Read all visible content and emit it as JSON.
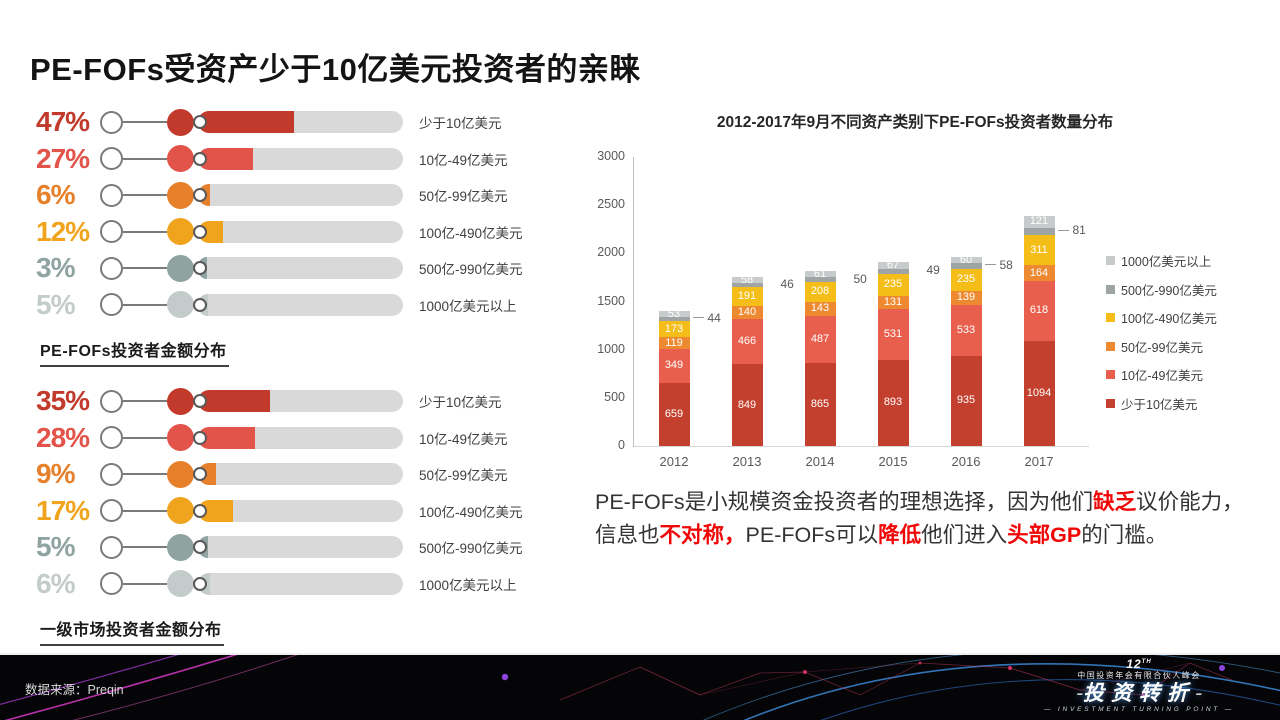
{
  "title": "PE-FOFs受资产少于10亿美元投资者的亲睐",
  "infographics": [
    {
      "caption": "PE-FOFs投资者金额分布",
      "rows": [
        {
          "pct_text": "47%",
          "value": 47,
          "label": "少于10亿美元",
          "color": "#C13A2B"
        },
        {
          "pct_text": "27%",
          "value": 27,
          "label": "10亿-49亿美元",
          "color": "#E2534A"
        },
        {
          "pct_text": "6%",
          "value": 6,
          "label": "50亿-99亿美元",
          "color": "#E6802A"
        },
        {
          "pct_text": "12%",
          "value": 12,
          "label": "100亿-490亿美元",
          "color": "#F0A41E"
        },
        {
          "pct_text": "3%",
          "value": 3,
          "label": "500亿-990亿美元",
          "color": "#8FA3A1"
        },
        {
          "pct_text": "5%",
          "value": 5,
          "label": "1000亿美元以上",
          "color": "#C3CBCB"
        }
      ]
    },
    {
      "caption": "一级市场投资者金额分布",
      "rows": [
        {
          "pct_text": "35%",
          "value": 35,
          "label": "少于10亿美元",
          "color": "#C13A2B"
        },
        {
          "pct_text": "28%",
          "value": 28,
          "label": "10亿-49亿美元",
          "color": "#E2534A"
        },
        {
          "pct_text": "9%",
          "value": 9,
          "label": "50亿-99亿美元",
          "color": "#E6802A"
        },
        {
          "pct_text": "17%",
          "value": 17,
          "label": "100亿-490亿美元",
          "color": "#F0A41E"
        },
        {
          "pct_text": "5%",
          "value": 5,
          "label": "500亿-990亿美元",
          "color": "#8FA3A1"
        },
        {
          "pct_text": "6%",
          "value": 6,
          "label": "1000亿美元以上",
          "color": "#C3CBCB"
        }
      ]
    }
  ],
  "chart": {
    "title": "2012-2017年9月不同资产类别下PE-FOFs投资者数量分布",
    "ymax": 3000,
    "y_ticks": [
      3000,
      2500,
      2000,
      1500,
      1000,
      500,
      0
    ],
    "years": [
      "2012",
      "2013",
      "2014",
      "2015",
      "2016",
      "2017"
    ],
    "stack_bottom_to_top": [
      {
        "name": "少于10亿美元",
        "color": "#C4402E",
        "values": [
          659,
          849,
          865,
          893,
          935,
          1094
        ],
        "label_inside": true,
        "callout": false
      },
      {
        "name": "10亿-49亿美元",
        "color": "#E8604D",
        "values": [
          349,
          466,
          487,
          531,
          533,
          618
        ],
        "label_inside": true,
        "callout": false
      },
      {
        "name": "50亿-99亿美元",
        "color": "#ED8A31",
        "values": [
          119,
          140,
          143,
          131,
          139,
          164
        ],
        "label_inside": true,
        "callout": false
      },
      {
        "name": "100亿-490亿美元",
        "color": "#F4BD18",
        "values": [
          173,
          191,
          208,
          235,
          235,
          311
        ],
        "label_inside": true,
        "callout": false
      },
      {
        "name": "500亿-990亿美元",
        "color": "#9FA5A5",
        "values": [
          44,
          46,
          50,
          49,
          58,
          81
        ],
        "label_inside": false,
        "callout": true
      },
      {
        "name": "1000亿美元以上",
        "color": "#C7CBCB",
        "values": [
          53,
          58,
          61,
          67,
          60,
          121
        ],
        "label_inside": true,
        "callout": false
      }
    ],
    "callout_dash": [
      true,
      false,
      false,
      false,
      true,
      true
    ],
    "legend_top_to_bottom": [
      {
        "label": "1000亿美元以上",
        "color": "#C7CBCB"
      },
      {
        "label": "500亿-990亿美元",
        "color": "#9FA5A5"
      },
      {
        "label": "100亿-490亿美元",
        "color": "#F4BD18"
      },
      {
        "label": "50亿-99亿美元",
        "color": "#ED8A31"
      },
      {
        "label": "10亿-49亿美元",
        "color": "#E8604D"
      },
      {
        "label": "少于10亿美元",
        "color": "#C4402E"
      }
    ]
  },
  "chart_data": [
    {
      "type": "bar",
      "orientation": "horizontal",
      "title": "PE-FOFs投资者金额分布",
      "categories": [
        "少于10亿美元",
        "10亿-49亿美元",
        "50亿-99亿美元",
        "100亿-490亿美元",
        "500亿-990亿美元",
        "1000亿美元以上"
      ],
      "values": [
        47,
        27,
        6,
        12,
        3,
        5
      ],
      "unit": "%",
      "xlim": [
        0,
        100
      ]
    },
    {
      "type": "bar",
      "orientation": "horizontal",
      "title": "一级市场投资者金额分布",
      "categories": [
        "少于10亿美元",
        "10亿-49亿美元",
        "50亿-99亿美元",
        "100亿-490亿美元",
        "500亿-990亿美元",
        "1000亿美元以上"
      ],
      "values": [
        35,
        28,
        9,
        17,
        5,
        6
      ],
      "unit": "%",
      "xlim": [
        0,
        100
      ]
    },
    {
      "type": "bar",
      "stacked": true,
      "title": "2012-2017年9月不同资产类别下PE-FOFs投资者数量分布",
      "categories": [
        "2012",
        "2013",
        "2014",
        "2015",
        "2016",
        "2017"
      ],
      "series": [
        {
          "name": "少于10亿美元",
          "values": [
            659,
            849,
            865,
            893,
            935,
            1094
          ]
        },
        {
          "name": "10亿-49亿美元",
          "values": [
            349,
            466,
            487,
            531,
            533,
            618
          ]
        },
        {
          "name": "50亿-99亿美元",
          "values": [
            119,
            140,
            143,
            131,
            139,
            164
          ]
        },
        {
          "name": "100亿-490亿美元",
          "values": [
            173,
            191,
            208,
            235,
            235,
            311
          ]
        },
        {
          "name": "500亿-990亿美元",
          "values": [
            44,
            46,
            50,
            49,
            58,
            81
          ]
        },
        {
          "name": "1000亿美元以上",
          "values": [
            53,
            58,
            61,
            67,
            60,
            121
          ]
        }
      ],
      "ylim": [
        0,
        3000
      ],
      "ytick_step": 500,
      "grid": false,
      "legend_position": "right"
    }
  ],
  "paragraph": {
    "segments": [
      {
        "text": "PE-FOFs是小规模资金投资者的理想选择，因为他们",
        "em": false
      },
      {
        "text": "缺乏",
        "em": true
      },
      {
        "text": "议价能力，信息也",
        "em": false
      },
      {
        "text": "不对称，",
        "em": true
      },
      {
        "text": "PE-FOFs可以",
        "em": false
      },
      {
        "text": "降低",
        "em": true
      },
      {
        "text": "他们进入",
        "em": false
      },
      {
        "text": "头部GP",
        "em": true
      },
      {
        "text": "的门槛。",
        "em": false
      }
    ]
  },
  "footer": {
    "source": "数据来源：Preqin",
    "logo": {
      "line1": "12",
      "line1_sup": "TH",
      "line2": "中国投资年会有限合伙人峰会",
      "line3": "投资转折",
      "line4": "INVESTMENT TURNING POINT"
    }
  }
}
